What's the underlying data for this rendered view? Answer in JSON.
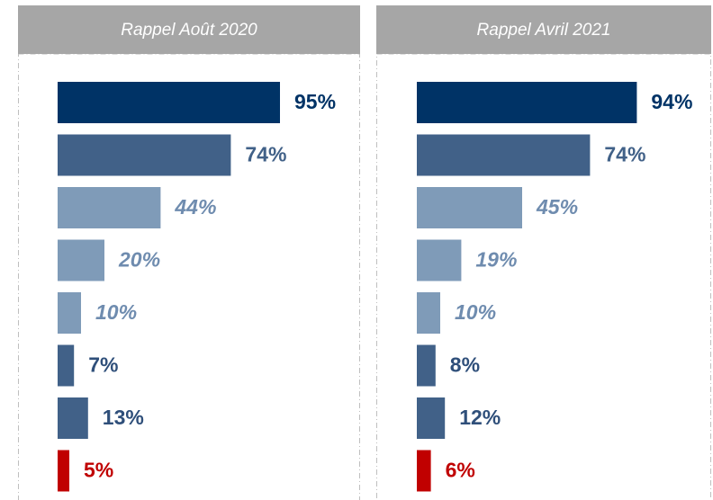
{
  "chart_data": [
    {
      "type": "bar",
      "title": "Rappel Août 2020",
      "values": [
        95,
        74,
        44,
        20,
        10,
        7,
        13,
        5
      ],
      "value_labels": [
        "95%",
        "74%",
        "44%",
        "20%",
        "10%",
        "7%",
        "13%",
        "5%"
      ],
      "colors": [
        "#003366",
        "#416188",
        "#7f9bb8",
        "#7f9bb8",
        "#7f9bb8",
        "#416188",
        "#416188",
        "#c00000"
      ],
      "label_colors": [
        "#003366",
        "#416188",
        "#6f8caf",
        "#6f8caf",
        "#6f8caf",
        "#2f4f7a",
        "#2f4f7a",
        "#c00000"
      ],
      "italic": [
        false,
        false,
        true,
        true,
        true,
        false,
        false,
        false
      ]
    },
    {
      "type": "bar",
      "title": "Rappel Avril 2021",
      "values": [
        94,
        74,
        45,
        19,
        10,
        8,
        12,
        6
      ],
      "value_labels": [
        "94%",
        "74%",
        "45%",
        "19%",
        "10%",
        "8%",
        "12%",
        "6%"
      ],
      "colors": [
        "#003366",
        "#416188",
        "#7f9bb8",
        "#7f9bb8",
        "#7f9bb8",
        "#416188",
        "#416188",
        "#c00000"
      ],
      "label_colors": [
        "#003366",
        "#416188",
        "#6f8caf",
        "#6f8caf",
        "#6f8caf",
        "#2f4f7a",
        "#2f4f7a",
        "#c00000"
      ],
      "italic": [
        false,
        false,
        true,
        true,
        true,
        false,
        false,
        false
      ]
    }
  ]
}
